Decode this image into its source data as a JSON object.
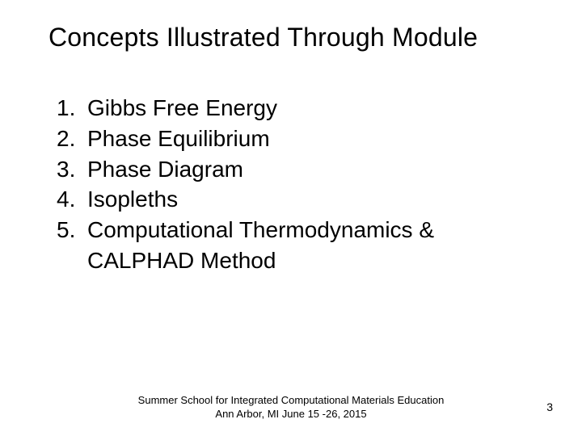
{
  "colors": {
    "background": "#ffffff",
    "text": "#000000"
  },
  "typography": {
    "title_fontsize": 32,
    "list_fontsize": 28,
    "footer_fontsize": 13,
    "pagenum_fontsize": 14,
    "font_family": "Arial"
  },
  "title": "Concepts Illustrated Through Module",
  "list": {
    "type": "numbered",
    "items": [
      {
        "num": "1.",
        "text": "Gibbs Free Energy"
      },
      {
        "num": "2.",
        "text": "Phase Equilibrium"
      },
      {
        "num": "3.",
        "text": "Phase Diagram"
      },
      {
        "num": "4.",
        "text": "Isopleths"
      },
      {
        "num": "5.",
        "text": "Computational Thermodynamics & CALPHAD Method"
      }
    ]
  },
  "footer": {
    "line1": "Summer School for Integrated Computational Materials Education",
    "line2": "Ann Arbor, MI  June 15 -26, 2015"
  },
  "page_number": "3"
}
